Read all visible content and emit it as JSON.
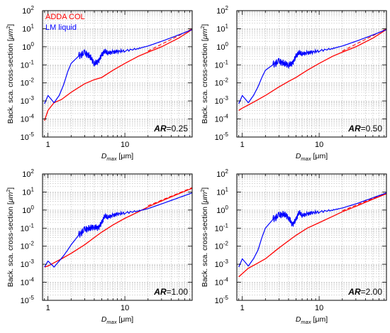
{
  "colors": {
    "adda": "#ff0000",
    "lm": "#0000ff",
    "grid": "#b4b4b4",
    "axis": "#000000"
  },
  "legend": {
    "adda_label": "ADDA COL",
    "lm_label": "LM liquid",
    "placement": "top-left"
  },
  "axis_labels": {
    "y_prefix": "Back. sca. cross-section [",
    "y_unit": "μm",
    "y_unit_exp": "2",
    "y_suffix": "]",
    "x_var": "D",
    "x_sub": "max",
    "x_unit": " [μm]"
  },
  "ann_prefix": "AR",
  "chart_data": [
    {
      "type": "line",
      "annotation": "=0.25",
      "xscale": "log",
      "yscale": "log",
      "xlim": [
        0.85,
        75
      ],
      "ylim": [
        1e-05,
        100
      ],
      "grid": true,
      "x_ticks": [
        {
          "value": 1,
          "label": "1"
        },
        {
          "value": 10,
          "label": "10"
        }
      ],
      "y_ticks": [
        {
          "exp": -5,
          "label": "10",
          "sup": "-5"
        },
        {
          "exp": -4,
          "label": "10",
          "sup": "-4"
        },
        {
          "exp": -3,
          "label": "10",
          "sup": "-3"
        },
        {
          "exp": -2,
          "label": "10",
          "sup": "-2"
        },
        {
          "exp": -1,
          "label": "10",
          "sup": "-1"
        },
        {
          "exp": 0,
          "label": "10",
          "sup": "0"
        },
        {
          "exp": 1,
          "label": "10",
          "sup": "1"
        },
        {
          "exp": 2,
          "label": "10",
          "sup": "2"
        }
      ],
      "series": [
        {
          "name": "ADDA COL",
          "x": [
            0.9,
            1.0,
            1.2,
            1.5,
            2,
            3,
            4,
            5,
            7,
            10,
            15,
            20,
            30,
            50,
            75
          ],
          "y": [
            8e-05,
            0.0003,
            0.0008,
            0.0012,
            0.003,
            0.009,
            0.015,
            0.02,
            0.05,
            0.12,
            0.3,
            0.5,
            1,
            3,
            9
          ]
        },
        {
          "name": "LM liquid",
          "x": [
            0.9,
            1.0,
            1.2,
            1.4,
            1.6,
            1.8,
            2.0,
            2.5,
            3,
            3.5,
            4,
            4.5,
            5,
            5.5,
            6,
            7,
            8,
            10,
            15,
            20,
            30,
            50,
            75
          ],
          "y": [
            0.0007,
            0.002,
            0.0008,
            0.002,
            0.008,
            0.04,
            0.12,
            0.3,
            0.45,
            0.3,
            0.12,
            0.15,
            0.35,
            0.6,
            0.45,
            0.5,
            0.55,
            0.6,
            0.8,
            1.1,
            2,
            4.5,
            9
          ]
        }
      ]
    },
    {
      "type": "line",
      "annotation": "=0.50",
      "xscale": "log",
      "yscale": "log",
      "xlim": [
        0.85,
        75
      ],
      "ylim": [
        1e-05,
        100
      ],
      "grid": true,
      "x_ticks": [
        {
          "value": 1,
          "label": "1"
        },
        {
          "value": 10,
          "label": "10"
        }
      ],
      "y_ticks": [
        {
          "exp": -5,
          "label": "10",
          "sup": "-5"
        },
        {
          "exp": -4,
          "label": "10",
          "sup": "-4"
        },
        {
          "exp": -3,
          "label": "10",
          "sup": "-3"
        },
        {
          "exp": -2,
          "label": "10",
          "sup": "-2"
        },
        {
          "exp": -1,
          "label": "10",
          "sup": "-1"
        },
        {
          "exp": 0,
          "label": "10",
          "sup": "0"
        },
        {
          "exp": 1,
          "label": "10",
          "sup": "1"
        },
        {
          "exp": 2,
          "label": "10",
          "sup": "2"
        }
      ],
      "series": [
        {
          "name": "ADDA COL",
          "x": [
            0.9,
            1.0,
            1.2,
            1.5,
            2,
            3,
            4,
            5,
            7,
            10,
            15,
            20,
            30,
            50,
            75
          ],
          "y": [
            0.0003,
            0.0004,
            0.0006,
            0.001,
            0.002,
            0.006,
            0.012,
            0.02,
            0.05,
            0.12,
            0.3,
            0.5,
            1,
            3,
            9
          ]
        },
        {
          "name": "LM liquid",
          "x": [
            0.9,
            1.0,
            1.2,
            1.4,
            1.6,
            1.8,
            2.0,
            2.5,
            3,
            3.5,
            4,
            4.5,
            5,
            5.5,
            6,
            7,
            8,
            10,
            15,
            20,
            30,
            50,
            75
          ],
          "y": [
            0.0007,
            0.002,
            0.0008,
            0.002,
            0.006,
            0.02,
            0.05,
            0.1,
            0.15,
            0.12,
            0.1,
            0.12,
            0.3,
            0.5,
            0.4,
            0.45,
            0.5,
            0.6,
            0.8,
            1.1,
            2,
            4.5,
            9
          ]
        }
      ]
    },
    {
      "type": "line",
      "annotation": "=1.00",
      "xscale": "log",
      "yscale": "log",
      "xlim": [
        0.85,
        75
      ],
      "ylim": [
        1e-05,
        100
      ],
      "grid": true,
      "x_ticks": [
        {
          "value": 1,
          "label": "1"
        },
        {
          "value": 10,
          "label": "10"
        }
      ],
      "y_ticks": [
        {
          "exp": -5,
          "label": "10",
          "sup": "-5"
        },
        {
          "exp": -4,
          "label": "10",
          "sup": "-4"
        },
        {
          "exp": -3,
          "label": "10",
          "sup": "-3"
        },
        {
          "exp": -2,
          "label": "10",
          "sup": "-2"
        },
        {
          "exp": -1,
          "label": "10",
          "sup": "-1"
        },
        {
          "exp": 0,
          "label": "10",
          "sup": "0"
        },
        {
          "exp": 1,
          "label": "10",
          "sup": "1"
        },
        {
          "exp": 2,
          "label": "10",
          "sup": "2"
        }
      ],
      "series": [
        {
          "name": "ADDA COL",
          "x": [
            0.9,
            1.0,
            1.2,
            1.5,
            2,
            3,
            4,
            5,
            7,
            10,
            15,
            20,
            30,
            50,
            75
          ],
          "y": [
            0.0007,
            0.0008,
            0.0012,
            0.002,
            0.004,
            0.012,
            0.03,
            0.06,
            0.15,
            0.35,
            0.8,
            1.5,
            3.2,
            8,
            16
          ]
        },
        {
          "name": "LM liquid",
          "x": [
            0.9,
            1.0,
            1.2,
            1.4,
            1.6,
            1.8,
            2.0,
            2.5,
            3,
            3.5,
            4,
            4.5,
            5,
            5.5,
            6,
            7,
            8,
            10,
            15,
            20,
            30,
            50,
            75
          ],
          "y": [
            0.0007,
            0.0015,
            0.0007,
            0.0015,
            0.003,
            0.006,
            0.012,
            0.04,
            0.08,
            0.1,
            0.12,
            0.1,
            0.2,
            0.5,
            0.4,
            0.5,
            0.6,
            0.7,
            0.9,
            1.2,
            2.2,
            4.8,
            9
          ]
        }
      ]
    },
    {
      "type": "line",
      "annotation": "=2.00",
      "xscale": "log",
      "yscale": "log",
      "xlim": [
        0.85,
        75
      ],
      "ylim": [
        1e-05,
        100
      ],
      "grid": true,
      "x_ticks": [
        {
          "value": 1,
          "label": "1"
        },
        {
          "value": 10,
          "label": "10"
        }
      ],
      "y_ticks": [
        {
          "exp": -5,
          "label": "10",
          "sup": "-5"
        },
        {
          "exp": -4,
          "label": "10",
          "sup": "-4"
        },
        {
          "exp": -3,
          "label": "10",
          "sup": "-3"
        },
        {
          "exp": -2,
          "label": "10",
          "sup": "-2"
        },
        {
          "exp": -1,
          "label": "10",
          "sup": "-1"
        },
        {
          "exp": 0,
          "label": "10",
          "sup": "0"
        },
        {
          "exp": 1,
          "label": "10",
          "sup": "1"
        },
        {
          "exp": 2,
          "label": "10",
          "sup": "2"
        }
      ],
      "series": [
        {
          "name": "ADDA COL",
          "x": [
            0.9,
            1.0,
            1.2,
            1.5,
            2,
            3,
            4,
            5,
            7,
            10,
            15,
            20,
            30,
            50,
            75
          ],
          "y": [
            0.0002,
            0.0003,
            0.0006,
            0.001,
            0.002,
            0.008,
            0.02,
            0.04,
            0.1,
            0.2,
            0.45,
            0.8,
            1.6,
            4,
            8
          ]
        },
        {
          "name": "LM liquid",
          "x": [
            0.9,
            1.0,
            1.2,
            1.4,
            1.6,
            1.8,
            2.0,
            2.5,
            3,
            3.5,
            4,
            4.5,
            5,
            5.5,
            6,
            7,
            8,
            10,
            15,
            20,
            30,
            50,
            75
          ],
          "y": [
            0.0007,
            0.002,
            0.0008,
            0.002,
            0.006,
            0.03,
            0.1,
            0.3,
            0.5,
            0.6,
            0.4,
            0.15,
            0.3,
            0.8,
            0.5,
            0.6,
            0.7,
            0.8,
            1,
            1.3,
            2.2,
            4.8,
            9
          ]
        }
      ]
    }
  ]
}
